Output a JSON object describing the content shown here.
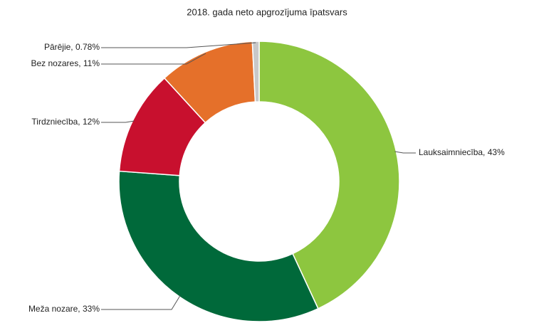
{
  "chart_data": {
    "type": "donut",
    "title": "2018. gada neto apgrozījuma īpatsvars",
    "values": [
      43,
      33,
      12,
      11,
      0.78
    ],
    "value_labels": [
      "Lauksaimniecība, 43%",
      "Meža nozare, 33%",
      "Tirdzniecība, 12%",
      "Bez nozares, 11%",
      "Pārējie, 0.78%"
    ],
    "colors": [
      "#8dc63f",
      "#00693a",
      "#c8102e",
      "#e5702a",
      "#c8c8c8"
    ]
  }
}
